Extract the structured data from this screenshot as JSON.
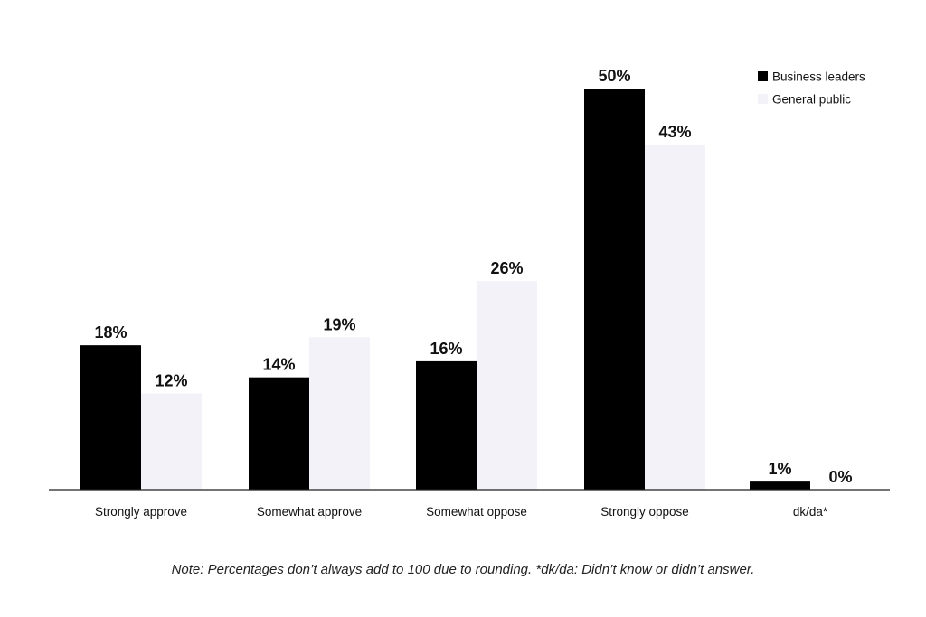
{
  "chart_data": {
    "type": "bar",
    "title": "",
    "xlabel": "",
    "ylabel": "",
    "ylim": [
      0,
      50
    ],
    "grid": false,
    "legend_position": "top-right",
    "categories": [
      "Strongly approve",
      "Somewhat approve",
      "Somewhat oppose",
      "Strongly oppose",
      "dk/da*"
    ],
    "series": [
      {
        "name": "Business leaders",
        "color": "#000000",
        "values": [
          18,
          14,
          16,
          50,
          1
        ],
        "labels": [
          "18%",
          "14%",
          "16%",
          "50%",
          "1%"
        ]
      },
      {
        "name": "General public",
        "color": "#F3F2F9",
        "values": [
          12,
          19,
          26,
          43,
          0
        ],
        "labels": [
          "12%",
          "19%",
          "26%",
          "43%",
          "0%"
        ]
      }
    ]
  },
  "note": "Note: Percentages don’t always add to 100 due to rounding. *dk/da: Didn’t know or didn’t answer."
}
